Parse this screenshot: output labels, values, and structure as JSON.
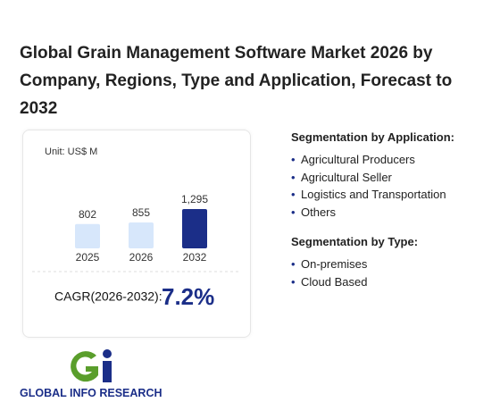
{
  "title": "Global Grain Management Software Market 2026 by Company, Regions, Type and Application, Forecast to 2032",
  "chart_data": {
    "type": "bar",
    "unit": "Unit: US$ M",
    "categories": [
      "2025",
      "2026",
      "2032"
    ],
    "values": [
      802,
      855,
      1295
    ],
    "value_labels": [
      "802",
      "855",
      "1,295"
    ],
    "colors": [
      "#d7e7fb",
      "#d7e7fb",
      "#1b2e88"
    ]
  },
  "cagr": {
    "label": "CAGR(2026-2032):",
    "value": "7.2%"
  },
  "segmentation": [
    {
      "heading": "Segmentation by Application:",
      "items": [
        "Agricultural Producers",
        "Agricultural Seller",
        "Logistics and Transportation",
        "Others"
      ]
    },
    {
      "heading": "Segmentation by Type:",
      "items": [
        "On-premises",
        "Cloud Based"
      ]
    }
  ],
  "logo": "GLOBAL INFO RESEARCH"
}
